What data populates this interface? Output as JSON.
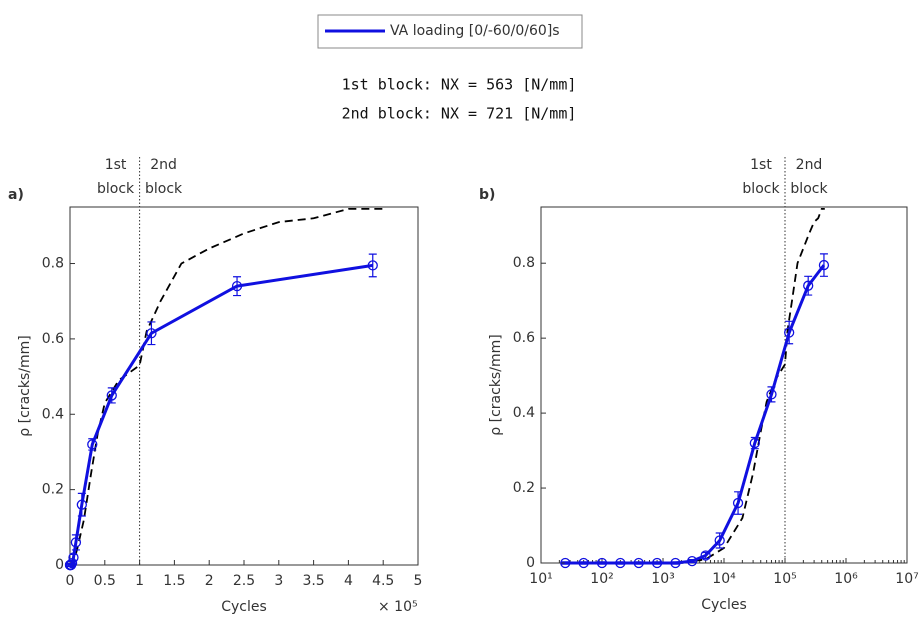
{
  "legend": "VA loading [0/-60/0/60]s",
  "notes": [
    "1st block: NX = 563 [N/mm]",
    "2nd block: NX = 721 [N/mm]"
  ],
  "chart_data": [
    {
      "type": "line",
      "panel": "a)",
      "xlabel": "Cycles",
      "ylabel": "ρ [cracks/mm]",
      "x_multiplier": "× 10⁵",
      "xscale": "linear",
      "xlim": [
        0,
        500000
      ],
      "ylim": [
        0,
        0.95
      ],
      "xticks": [
        0,
        {
          "value": 50000,
          "label": "0.5"
        },
        {
          "value": 100000,
          "label": "1"
        },
        {
          "value": 150000,
          "label": "1.5"
        },
        {
          "value": 200000,
          "label": "2"
        },
        {
          "value": 250000,
          "label": "2.5"
        },
        {
          "value": 300000,
          "label": "3"
        },
        {
          "value": 350000,
          "label": "3.5"
        },
        {
          "value": 400000,
          "label": "4"
        },
        {
          "value": 450000,
          "label": "4.5"
        },
        {
          "value": 500000,
          "label": "5"
        }
      ],
      "yticks": [
        0,
        0.2,
        0.4,
        0.6,
        0.8
      ],
      "divider": 100000,
      "block_labels": [
        [
          "1st",
          "block"
        ],
        [
          "2nd",
          "block"
        ]
      ],
      "series": [
        {
          "color": "#000000",
          "dashed": true,
          "x": [
            0,
            5000,
            10000,
            20000,
            30000,
            40000,
            50000,
            70000,
            100000,
            110000,
            130000,
            160000,
            200000,
            250000,
            300000,
            350000,
            400000,
            450000
          ],
          "values": [
            0,
            0.01,
            0.04,
            0.12,
            0.24,
            0.35,
            0.43,
            0.49,
            0.53,
            0.62,
            0.7,
            0.8,
            0.84,
            0.88,
            0.91,
            0.92,
            0.945,
            0.945
          ]
        },
        {
          "color": "#1010e0",
          "dashed": false,
          "x": [
            25,
            50,
            100,
            200,
            400,
            800,
            1600,
            3000,
            5000,
            8500,
            17000,
            32000,
            60000,
            117000,
            240000,
            435000
          ],
          "values": [
            0,
            0,
            0,
            0,
            0,
            0,
            0,
            0.005,
            0.02,
            0.06,
            0.16,
            0.32,
            0.45,
            0.615,
            0.74,
            0.795
          ],
          "errors": [
            0.003,
            0.003,
            0.003,
            0.003,
            0.003,
            0.003,
            0.003,
            0.004,
            0.008,
            0.02,
            0.03,
            0.015,
            0.02,
            0.03,
            0.025,
            0.03
          ]
        }
      ]
    },
    {
      "type": "line",
      "panel": "b)",
      "xlabel": "Cycles",
      "ylabel": "ρ [cracks/mm]",
      "xscale": "log",
      "xlim": [
        10,
        10000000
      ],
      "ylim": [
        0,
        0.95
      ],
      "xticks": [
        {
          "value": 10,
          "label": "10¹"
        },
        {
          "value": 100,
          "label": "10²"
        },
        {
          "value": 1000,
          "label": "10³"
        },
        {
          "value": 10000,
          "label": "10⁴"
        },
        {
          "value": 100000,
          "label": "10⁵"
        },
        {
          "value": 1000000,
          "label": "10⁶"
        },
        {
          "value": 10000000,
          "label": "10⁷"
        }
      ],
      "yticks": [
        0,
        0.2,
        0.4,
        0.6,
        0.8
      ],
      "divider": 100000,
      "block_labels": [
        [
          "1st",
          "block"
        ],
        [
          "2nd",
          "block"
        ]
      ],
      "series": [
        {
          "color": "#000000",
          "dashed": true,
          "x": [
            2000,
            5000,
            10000,
            20000,
            30000,
            40000,
            50000,
            70000,
            100000,
            110000,
            130000,
            160000,
            200000,
            250000,
            300000,
            350000,
            400000,
            450000
          ],
          "values": [
            0,
            0.01,
            0.04,
            0.12,
            0.24,
            0.35,
            0.43,
            0.49,
            0.53,
            0.62,
            0.7,
            0.8,
            0.84,
            0.88,
            0.91,
            0.92,
            0.945,
            0.945
          ]
        },
        {
          "color": "#1010e0",
          "dashed": false,
          "x": [
            25,
            50,
            100,
            200,
            400,
            800,
            1600,
            3000,
            5000,
            8500,
            17000,
            32000,
            60000,
            117000,
            240000,
            435000
          ],
          "values": [
            0,
            0,
            0,
            0,
            0,
            0,
            0,
            0.005,
            0.02,
            0.06,
            0.16,
            0.32,
            0.45,
            0.615,
            0.74,
            0.795
          ],
          "errors": [
            0.003,
            0.003,
            0.003,
            0.003,
            0.003,
            0.003,
            0.003,
            0.004,
            0.008,
            0.02,
            0.03,
            0.015,
            0.02,
            0.03,
            0.025,
            0.03
          ]
        }
      ]
    }
  ]
}
